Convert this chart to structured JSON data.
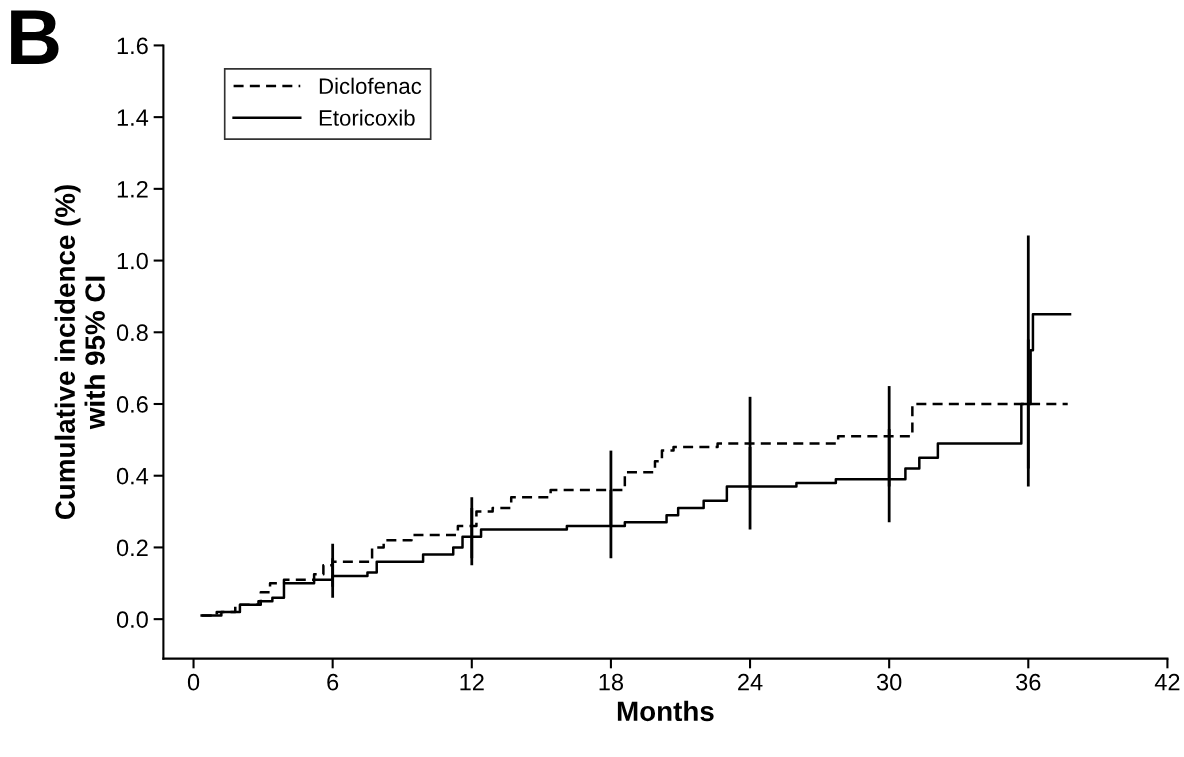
{
  "chart_data": {
    "type": "step",
    "title": "B",
    "xlabel": "Months",
    "ylabel": "Cumulative incidence (%)\nwith 95% CI",
    "xlim": [
      -1.3,
      42
    ],
    "ylim": [
      -0.11,
      1.6
    ],
    "xticks": [
      0,
      6,
      12,
      18,
      24,
      30,
      36,
      42
    ],
    "yticks": [
      {
        "value": 0,
        "label": "0.0"
      },
      {
        "value": 0.2,
        "label": "0.2"
      },
      {
        "value": 0.4,
        "label": "0.4"
      },
      {
        "value": 0.6,
        "label": "0.6"
      },
      {
        "value": 0.8,
        "label": "0.8"
      },
      {
        "value": 1.0,
        "label": "1.0"
      },
      {
        "value": 1.2,
        "label": "1.2"
      },
      {
        "value": 1.4,
        "label": "1.4"
      },
      {
        "value": 1.6,
        "label": "1.6"
      }
    ],
    "grid": false,
    "legend": "top left",
    "series": [
      {
        "name": "Diclofenac",
        "color": "#000000",
        "line_style": "dashed",
        "x": [
          0.35,
          1.0,
          1.8,
          2.9,
          3.3,
          3.9,
          5.2,
          5.6,
          6,
          7.7,
          8.2,
          9.4,
          11.4,
          12,
          12.2,
          12.9,
          13.7,
          15.4,
          18,
          18.6,
          19.9,
          20.2,
          20.7,
          22.6,
          24,
          27.8,
          30,
          31.0,
          36,
          37.7
        ],
        "values": [
          0.01,
          0.02,
          0.04,
          0.075,
          0.1,
          0.11,
          0.125,
          0.15,
          0.16,
          0.2,
          0.22,
          0.235,
          0.26,
          0.26,
          0.3,
          0.31,
          0.34,
          0.36,
          0.36,
          0.41,
          0.44,
          0.47,
          0.48,
          0.49,
          0.49,
          0.51,
          0.51,
          0.6,
          0.6,
          0.6
        ],
        "errors": [
          null,
          null,
          null,
          null,
          null,
          null,
          null,
          null,
          [
            0.09,
            0.21
          ],
          null,
          null,
          null,
          null,
          [
            0.17,
            0.34
          ],
          null,
          null,
          null,
          null,
          [
            0.26,
            0.47
          ],
          null,
          null,
          null,
          null,
          null,
          [
            0.36,
            0.62
          ],
          null,
          [
            0.37,
            0.65
          ],
          null,
          [
            0.42,
            0.78
          ],
          null
        ]
      },
      {
        "name": "Etoricoxib",
        "color": "#000000",
        "line_style": "solid",
        "x": [
          0.35,
          1.2,
          2.0,
          2.8,
          3.4,
          3.9,
          5.2,
          6,
          7.5,
          7.9,
          9.9,
          11.2,
          11.6,
          12,
          12.4,
          16.1,
          18,
          18.6,
          20.4,
          20.9,
          22.0,
          23.0,
          24,
          26.0,
          27.7,
          30,
          30.7,
          31.3,
          32.1,
          35.7,
          36,
          36.1,
          36.2,
          37.8
        ],
        "values": [
          0.01,
          0.02,
          0.04,
          0.05,
          0.06,
          0.1,
          0.11,
          0.12,
          0.13,
          0.16,
          0.18,
          0.2,
          0.23,
          0.23,
          0.25,
          0.26,
          0.26,
          0.27,
          0.29,
          0.31,
          0.33,
          0.37,
          0.37,
          0.38,
          0.39,
          0.39,
          0.42,
          0.45,
          0.49,
          0.6,
          0.6,
          0.75,
          0.85,
          0.85
        ],
        "errors": [
          null,
          null,
          null,
          null,
          null,
          null,
          null,
          [
            0.06,
            0.17
          ],
          null,
          null,
          null,
          null,
          null,
          [
            0.15,
            0.31
          ],
          null,
          null,
          [
            0.17,
            0.36
          ],
          null,
          null,
          null,
          null,
          null,
          [
            0.25,
            0.48
          ],
          null,
          null,
          [
            0.27,
            0.53
          ],
          null,
          null,
          null,
          null,
          [
            0.37,
            1.07
          ],
          null,
          null,
          null
        ]
      }
    ]
  }
}
